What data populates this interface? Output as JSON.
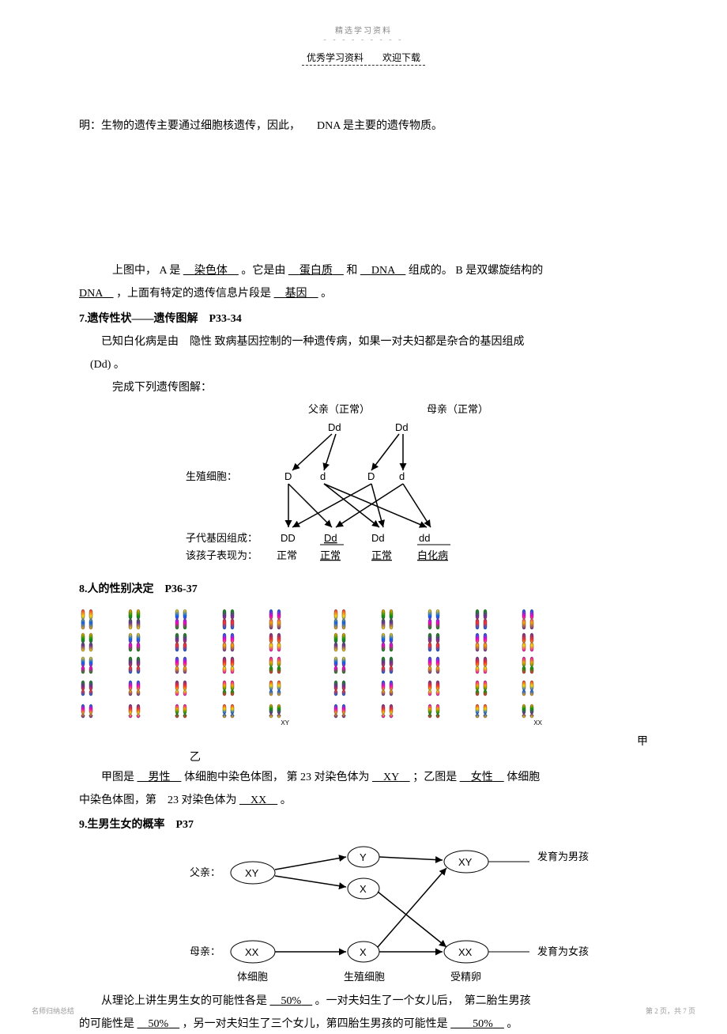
{
  "header": {
    "topMark": "精选学习资料",
    "topDots": "- - - - - - - - -",
    "subLeft": "优秀学习资料",
    "subRight": "欢迎下载"
  },
  "intro": {
    "line": "明：生物的遗传主要通过细胞核遗传，因此，　　DNA 是主要的遗传物质。"
  },
  "q6": {
    "prefix": "上图中， A 是",
    "a1": "染色体",
    "mid1": "。它是由",
    "a2": "蛋白质",
    "mid2": "和",
    "a3": "DNA",
    "mid3": "组成的。 B 是双螺旋结构的",
    "line2a": "DNA",
    "line2b": "，上面有特定的遗传信息片段是",
    "a4": "基因",
    "line2c": "。"
  },
  "s7": {
    "title": "7.遗传性状——遗传图解　P33-34",
    "p1a": "已知白化病是由　隐性 致病基因控制的一种遗传病，如果一对夫妇都是杂合的基因组成",
    "p1b": "(Dd) 。",
    "p2": "完成下列遗传图解：",
    "father": "父亲（正常）",
    "mother": "母亲（正常）",
    "fGeno": "Dd",
    "mGeno": "Dd",
    "gameteLabel": "生殖细胞：",
    "g1": "D",
    "g2": "d",
    "g3": "D",
    "g4": "d",
    "offLabel": "子代基因组成：",
    "o1": "DD",
    "o2": "Dd",
    "o3": "Dd",
    "o4": "dd",
    "phenoLabel": "该孩子表现为：",
    "ph1": "正常",
    "ph2": "正常",
    "ph3": "正常",
    "ph4": "白化病"
  },
  "s8": {
    "title": "8.人的性别决定　P36-37",
    "jia": "甲",
    "yi": "乙",
    "p1a": "甲图是",
    "a1": "男性",
    "p1b": "体细胞中染色体图， 第 23 对染色体为",
    "a2": "XY",
    "p1c": "；乙图是",
    "a3": "女性",
    "p1d": "体细胞",
    "p2a": "中染色体图，第　23 对染色体为",
    "a4": "XX",
    "p2b": "。"
  },
  "s9": {
    "title": "9.生男生女的概率　P37",
    "fatherLabel": "父亲：",
    "motherLabel": "母亲：",
    "XY": "XY",
    "XX": "XX",
    "Y": "Y",
    "X": "X",
    "boy": "发育为男孩",
    "girl": "发育为女孩",
    "col1": "体细胞",
    "col2": "生殖细胞",
    "col3": "受精卵",
    "p1a": "从理论上讲生男生女的可能性各是",
    "a1": "50%",
    "p1b": "。一对夫妇生了一个女儿后，　第二胎生男孩",
    "p2a": "的可能性是",
    "a2": "50%",
    "p2b": "，另一对夫妇生了三个女儿，第四胎生男孩的可能性是",
    "a3": "50%",
    "p2c": "。"
  },
  "footer": {
    "left": "名师归纳总结",
    "right": "第 2 页，共 7 页"
  },
  "chromColors": [
    "#ff3030",
    "#ffa500",
    "#ffd700",
    "#00a000",
    "#0066ff",
    "#7030a0",
    "#ff00cc"
  ],
  "lastPairMale": "XY",
  "lastPairFemale": "XX"
}
